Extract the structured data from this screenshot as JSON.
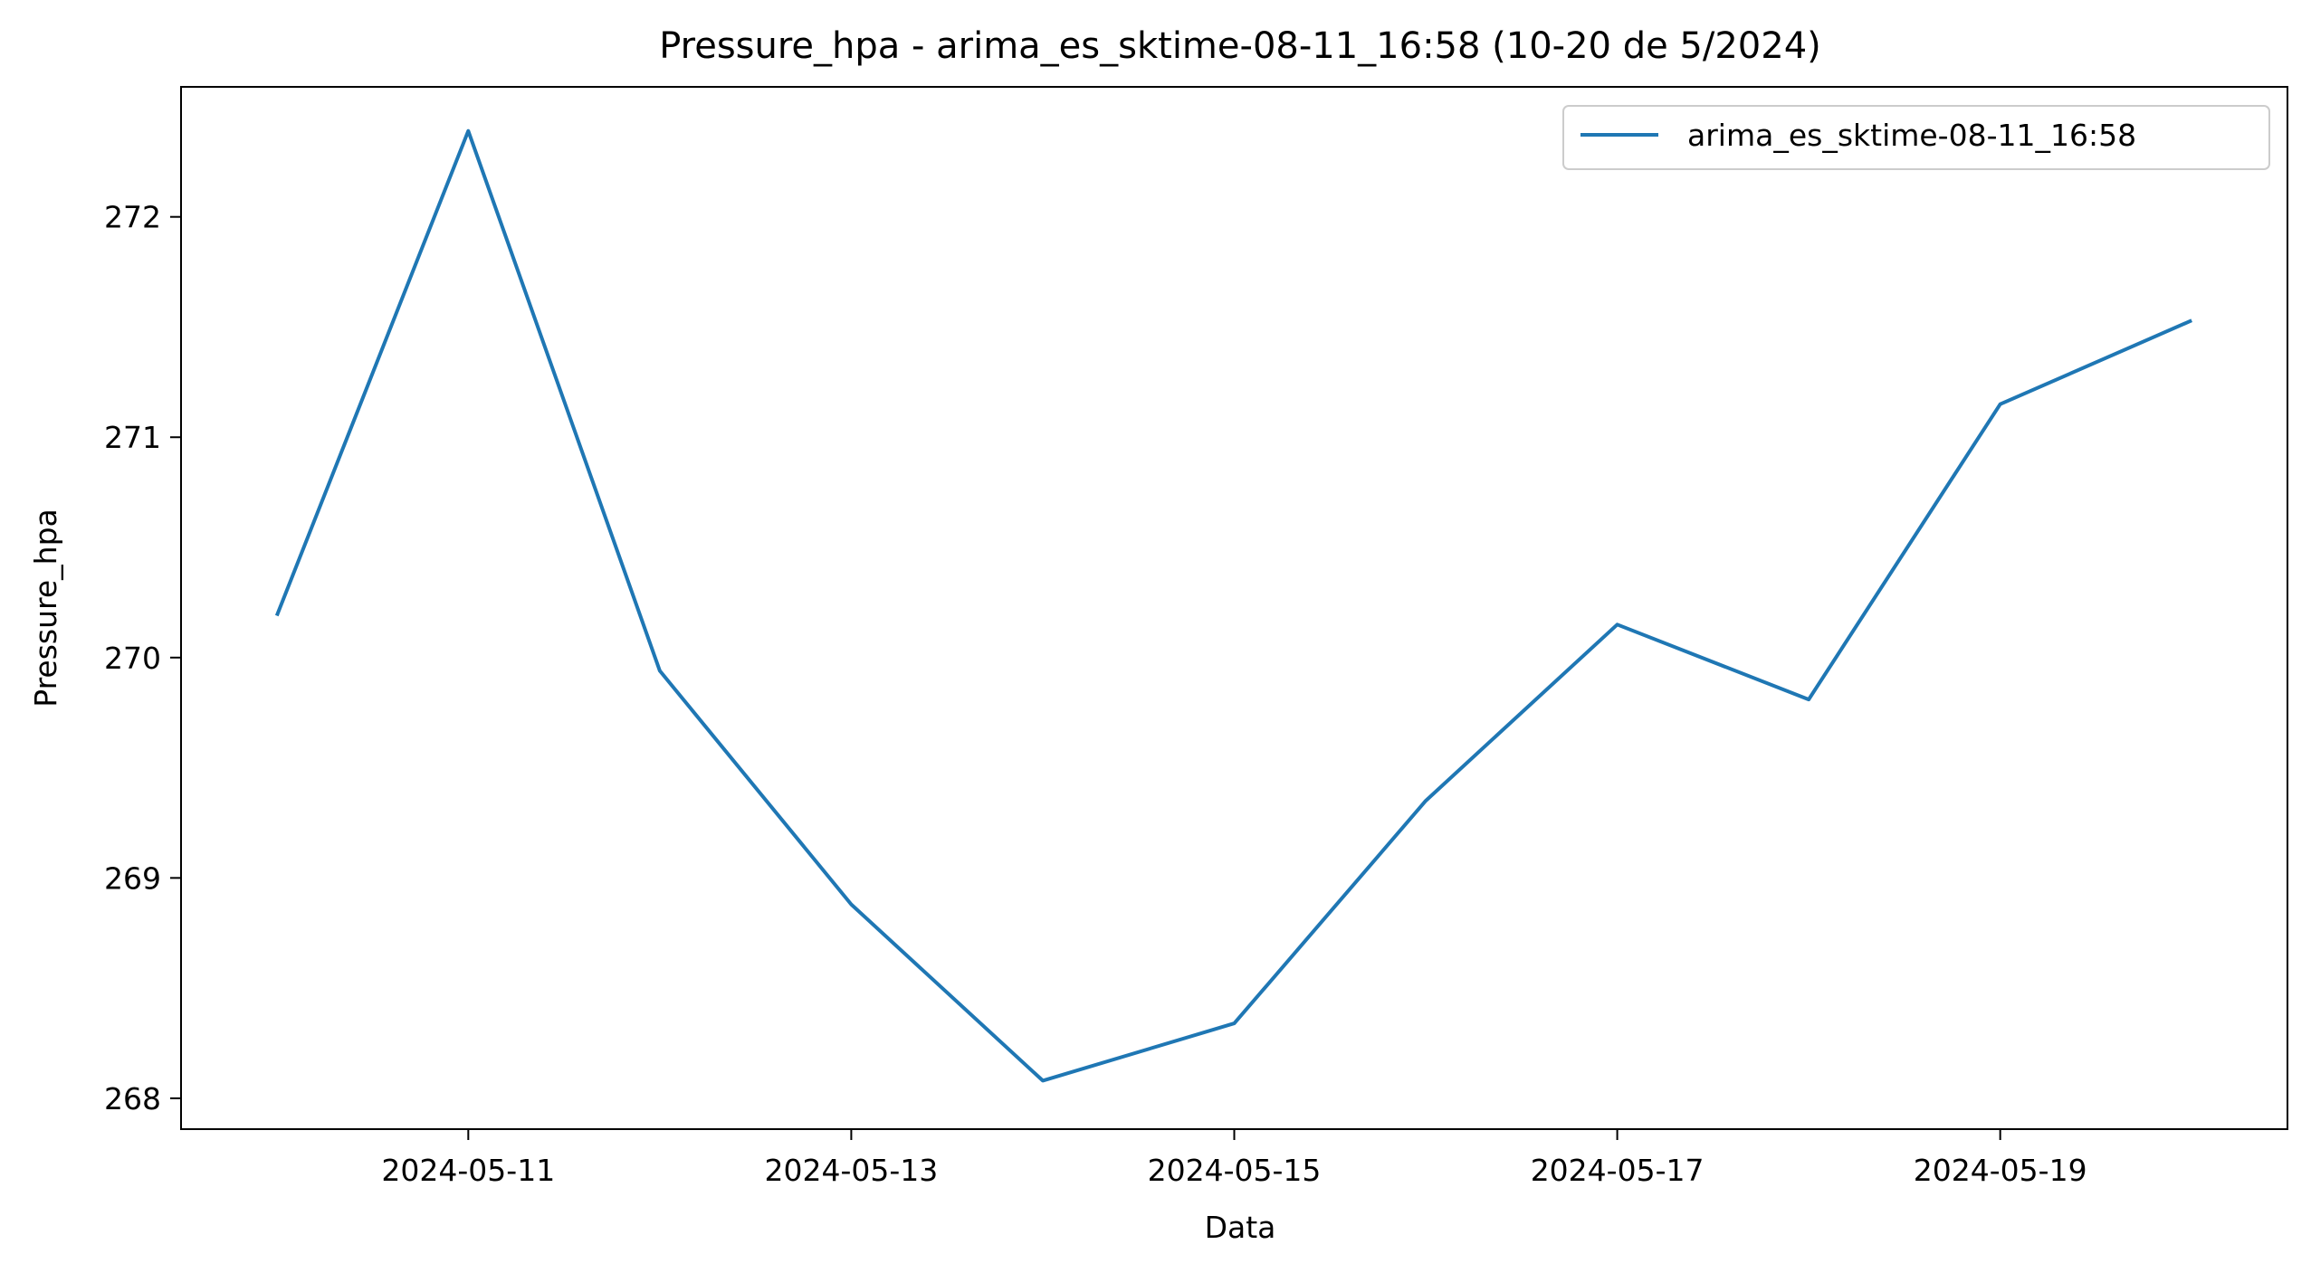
{
  "chart_data": {
    "type": "line",
    "title": "Pressure_hpa - arima_es_sktime-08-11_16:58 (10-20 de 5/2024)",
    "xlabel": "Data",
    "ylabel": "Pressure_hpa",
    "x": [
      "2024-05-10",
      "2024-05-11",
      "2024-05-12",
      "2024-05-13",
      "2024-05-14",
      "2024-05-15",
      "2024-05-16",
      "2024-05-17",
      "2024-05-18",
      "2024-05-19",
      "2024-05-20"
    ],
    "xlim": [
      "2024-05-09T12:00",
      "2024-05-20T12:00"
    ],
    "x_ticks": [
      "2024-05-11",
      "2024-05-13",
      "2024-05-15",
      "2024-05-17",
      "2024-05-19"
    ],
    "ylim": [
      267.86,
      272.59
    ],
    "y_ticks": [
      268,
      269,
      270,
      271,
      272
    ],
    "grid": false,
    "legend_position": "top-right",
    "series": [
      {
        "name": "arima_es_sktime-08-11_16:58",
        "color": "#1f77b4",
        "values": [
          270.19,
          272.39,
          269.94,
          268.88,
          268.08,
          268.34,
          269.35,
          270.15,
          269.81,
          271.15,
          271.53
        ]
      }
    ]
  }
}
